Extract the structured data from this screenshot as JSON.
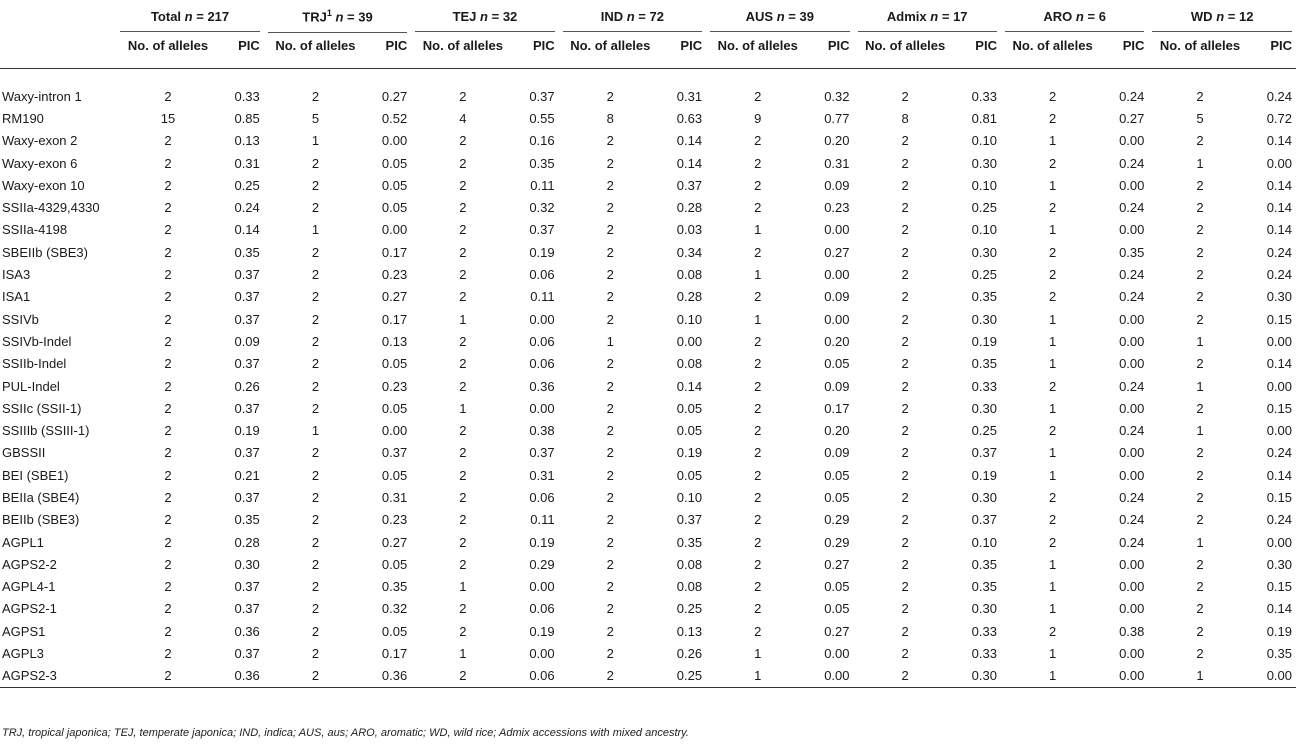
{
  "groups": [
    {
      "label": "Total",
      "n": "217"
    },
    {
      "label": "TRJ",
      "sup": "1",
      "n": "39"
    },
    {
      "label": "TEJ",
      "n": "32"
    },
    {
      "label": "IND",
      "n": "72"
    },
    {
      "label": "AUS",
      "n": "39"
    },
    {
      "label": "Admix",
      "n": "17"
    },
    {
      "label": "ARO",
      "n": "6"
    },
    {
      "label": "WD",
      "n": "12"
    }
  ],
  "n_symbol": "n",
  "equals": " = ",
  "sub_headers": {
    "alleles": "No. of alleles",
    "pic": "PIC"
  },
  "rows": [
    {
      "marker": "Waxy-intron 1",
      "values": [
        "2",
        "0.33",
        "2",
        "0.27",
        "2",
        "0.37",
        "2",
        "0.31",
        "2",
        "0.32",
        "2",
        "0.33",
        "2",
        "0.24",
        "2",
        "0.24"
      ]
    },
    {
      "marker": "RM190",
      "values": [
        "15",
        "0.85",
        "5",
        "0.52",
        "4",
        "0.55",
        "8",
        "0.63",
        "9",
        "0.77",
        "8",
        "0.81",
        "2",
        "0.27",
        "5",
        "0.72"
      ]
    },
    {
      "marker": "Waxy-exon 2",
      "values": [
        "2",
        "0.13",
        "1",
        "0.00",
        "2",
        "0.16",
        "2",
        "0.14",
        "2",
        "0.20",
        "2",
        "0.10",
        "1",
        "0.00",
        "2",
        "0.14"
      ]
    },
    {
      "marker": "Waxy-exon 6",
      "values": [
        "2",
        "0.31",
        "2",
        "0.05",
        "2",
        "0.35",
        "2",
        "0.14",
        "2",
        "0.31",
        "2",
        "0.30",
        "2",
        "0.24",
        "1",
        "0.00"
      ]
    },
    {
      "marker": "Waxy-exon 10",
      "values": [
        "2",
        "0.25",
        "2",
        "0.05",
        "2",
        "0.11",
        "2",
        "0.37",
        "2",
        "0.09",
        "2",
        "0.10",
        "1",
        "0.00",
        "2",
        "0.14"
      ]
    },
    {
      "marker": "SSIIa-4329,4330",
      "values": [
        "2",
        "0.24",
        "2",
        "0.05",
        "2",
        "0.32",
        "2",
        "0.28",
        "2",
        "0.23",
        "2",
        "0.25",
        "2",
        "0.24",
        "2",
        "0.14"
      ]
    },
    {
      "marker": "SSIIa-4198",
      "values": [
        "2",
        "0.14",
        "1",
        "0.00",
        "2",
        "0.37",
        "2",
        "0.03",
        "1",
        "0.00",
        "2",
        "0.10",
        "1",
        "0.00",
        "2",
        "0.14"
      ]
    },
    {
      "marker": "SBEIIb (SBE3)",
      "values": [
        "2",
        "0.35",
        "2",
        "0.17",
        "2",
        "0.19",
        "2",
        "0.34",
        "2",
        "0.27",
        "2",
        "0.30",
        "2",
        "0.35",
        "2",
        "0.24"
      ]
    },
    {
      "marker": "ISA3",
      "values": [
        "2",
        "0.37",
        "2",
        "0.23",
        "2",
        "0.06",
        "2",
        "0.08",
        "1",
        "0.00",
        "2",
        "0.25",
        "2",
        "0.24",
        "2",
        "0.24"
      ]
    },
    {
      "marker": "ISA1",
      "values": [
        "2",
        "0.37",
        "2",
        "0.27",
        "2",
        "0.11",
        "2",
        "0.28",
        "2",
        "0.09",
        "2",
        "0.35",
        "2",
        "0.24",
        "2",
        "0.30"
      ]
    },
    {
      "marker": "SSIVb",
      "values": [
        "2",
        "0.37",
        "2",
        "0.17",
        "1",
        "0.00",
        "2",
        "0.10",
        "1",
        "0.00",
        "2",
        "0.30",
        "1",
        "0.00",
        "2",
        "0.15"
      ]
    },
    {
      "marker": "SSIVb-Indel",
      "values": [
        "2",
        "0.09",
        "2",
        "0.13",
        "2",
        "0.06",
        "1",
        "0.00",
        "2",
        "0.20",
        "2",
        "0.19",
        "1",
        "0.00",
        "1",
        "0.00"
      ]
    },
    {
      "marker": "SSIIb-Indel",
      "values": [
        "2",
        "0.37",
        "2",
        "0.05",
        "2",
        "0.06",
        "2",
        "0.08",
        "2",
        "0.05",
        "2",
        "0.35",
        "1",
        "0.00",
        "2",
        "0.14"
      ]
    },
    {
      "marker": "PUL-Indel",
      "values": [
        "2",
        "0.26",
        "2",
        "0.23",
        "2",
        "0.36",
        "2",
        "0.14",
        "2",
        "0.09",
        "2",
        "0.33",
        "2",
        "0.24",
        "1",
        "0.00"
      ]
    },
    {
      "marker": "SSIIc (SSII-1)",
      "values": [
        "2",
        "0.37",
        "2",
        "0.05",
        "1",
        "0.00",
        "2",
        "0.05",
        "2",
        "0.17",
        "2",
        "0.30",
        "1",
        "0.00",
        "2",
        "0.15"
      ]
    },
    {
      "marker": "SSIIIb (SSIII-1)",
      "values": [
        "2",
        "0.19",
        "1",
        "0.00",
        "2",
        "0.38",
        "2",
        "0.05",
        "2",
        "0.20",
        "2",
        "0.25",
        "2",
        "0.24",
        "1",
        "0.00"
      ]
    },
    {
      "marker": "GBSSII",
      "values": [
        "2",
        "0.37",
        "2",
        "0.37",
        "2",
        "0.37",
        "2",
        "0.19",
        "2",
        "0.09",
        "2",
        "0.37",
        "1",
        "0.00",
        "2",
        "0.24"
      ]
    },
    {
      "marker": "BEI (SBE1)",
      "values": [
        "2",
        "0.21",
        "2",
        "0.05",
        "2",
        "0.31",
        "2",
        "0.05",
        "2",
        "0.05",
        "2",
        "0.19",
        "1",
        "0.00",
        "2",
        "0.14"
      ]
    },
    {
      "marker": "BEIIa (SBE4)",
      "values": [
        "2",
        "0.37",
        "2",
        "0.31",
        "2",
        "0.06",
        "2",
        "0.10",
        "2",
        "0.05",
        "2",
        "0.30",
        "2",
        "0.24",
        "2",
        "0.15"
      ]
    },
    {
      "marker": "BEIIb (SBE3)",
      "values": [
        "2",
        "0.35",
        "2",
        "0.23",
        "2",
        "0.11",
        "2",
        "0.37",
        "2",
        "0.29",
        "2",
        "0.37",
        "2",
        "0.24",
        "2",
        "0.24"
      ]
    },
    {
      "marker": "AGPL1",
      "values": [
        "2",
        "0.28",
        "2",
        "0.27",
        "2",
        "0.19",
        "2",
        "0.35",
        "2",
        "0.29",
        "2",
        "0.10",
        "2",
        "0.24",
        "1",
        "0.00"
      ]
    },
    {
      "marker": "AGPS2-2",
      "values": [
        "2",
        "0.30",
        "2",
        "0.05",
        "2",
        "0.29",
        "2",
        "0.08",
        "2",
        "0.27",
        "2",
        "0.35",
        "1",
        "0.00",
        "2",
        "0.30"
      ]
    },
    {
      "marker": "AGPL4-1",
      "values": [
        "2",
        "0.37",
        "2",
        "0.35",
        "1",
        "0.00",
        "2",
        "0.08",
        "2",
        "0.05",
        "2",
        "0.35",
        "1",
        "0.00",
        "2",
        "0.15"
      ]
    },
    {
      "marker": "AGPS2-1",
      "values": [
        "2",
        "0.37",
        "2",
        "0.32",
        "2",
        "0.06",
        "2",
        "0.25",
        "2",
        "0.05",
        "2",
        "0.30",
        "1",
        "0.00",
        "2",
        "0.14"
      ]
    },
    {
      "marker": "AGPS1",
      "values": [
        "2",
        "0.36",
        "2",
        "0.05",
        "2",
        "0.19",
        "2",
        "0.13",
        "2",
        "0.27",
        "2",
        "0.33",
        "2",
        "0.38",
        "2",
        "0.19"
      ]
    },
    {
      "marker": "AGPL3",
      "values": [
        "2",
        "0.37",
        "2",
        "0.17",
        "1",
        "0.00",
        "2",
        "0.26",
        "1",
        "0.00",
        "2",
        "0.33",
        "1",
        "0.00",
        "2",
        "0.35"
      ]
    },
    {
      "marker": "AGPS2-3",
      "values": [
        "2",
        "0.36",
        "2",
        "0.36",
        "2",
        "0.06",
        "2",
        "0.25",
        "1",
        "0.00",
        "2",
        "0.30",
        "1",
        "0.00",
        "1",
        "0.00"
      ]
    }
  ],
  "footnote": "TRJ, tropical japonica; TEJ, temperate japonica; IND, indica; AUS, aus; ARO, aromatic; WD, wild rice; Admix accessions with mixed ancestry."
}
